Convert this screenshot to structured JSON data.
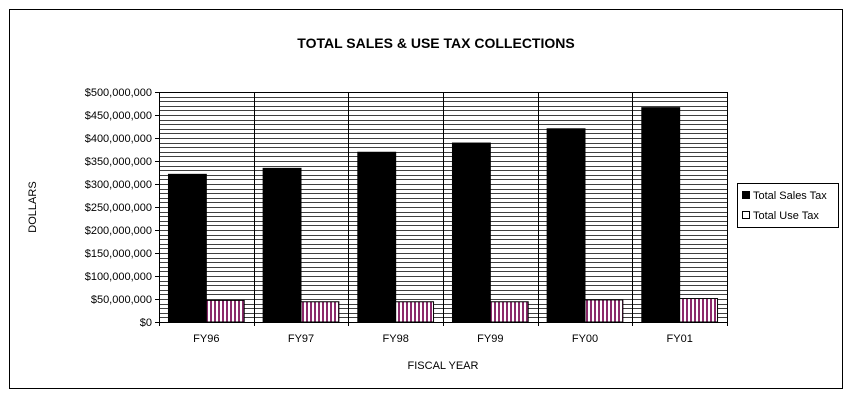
{
  "chart_data": {
    "type": "bar",
    "title": "TOTAL SALES & USE TAX COLLECTIONS",
    "xlabel": "FISCAL YEAR",
    "ylabel": "DOLLARS",
    "categories": [
      "FY96",
      "FY97",
      "FY98",
      "FY99",
      "FY00",
      "FY01"
    ],
    "series": [
      {
        "name": "Total Sales Tax",
        "values": [
          321000000,
          334000000,
          369000000,
          389000000,
          420000000,
          466000000
        ],
        "color": "#000000"
      },
      {
        "name": "Total Use Tax",
        "values": [
          47000000,
          44000000,
          44000000,
          44000000,
          48000000,
          51000000
        ],
        "color": "#8b2a6b"
      }
    ],
    "ylim": [
      0,
      500000000
    ],
    "ytick_step": 50000000,
    "ytick_labels": [
      "$0",
      "$50,000,000",
      "$100,000,000",
      "$150,000,000",
      "$200,000,000",
      "$250,000,000",
      "$300,000,000",
      "$350,000,000",
      "$400,000,000",
      "$450,000,000",
      "$500,000,000"
    ],
    "minor_grid_step": 10000000,
    "grid": true,
    "legend_position": "right"
  }
}
